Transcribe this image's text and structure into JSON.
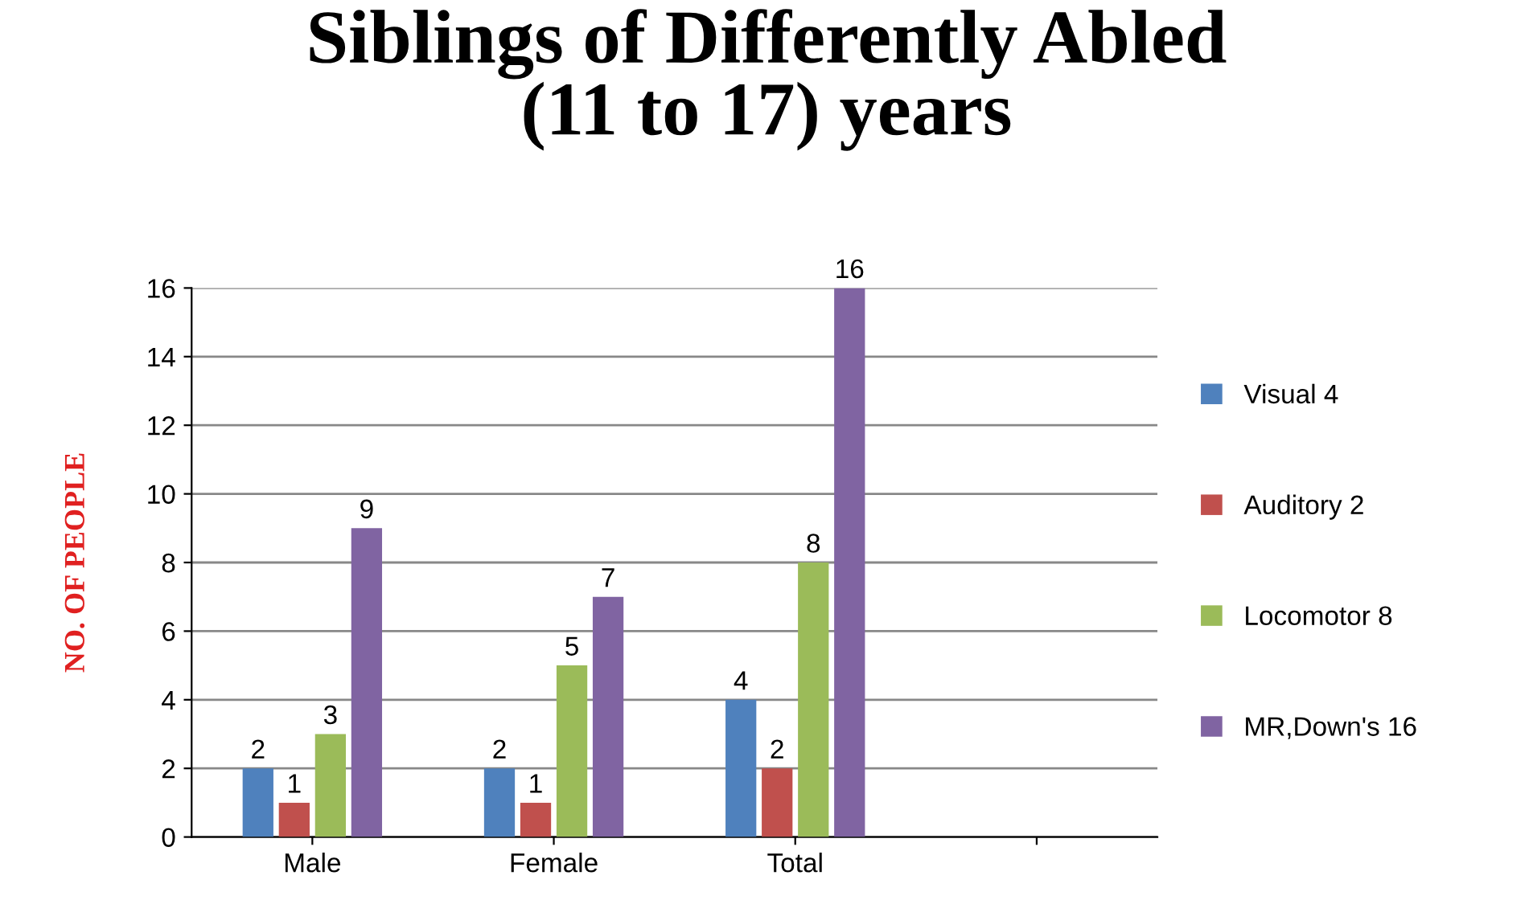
{
  "chart_data": {
    "type": "bar",
    "title": "Siblings of Differently Abled\n(11 to 17) years",
    "ylabel": "NO. OF PEOPLE",
    "categories": [
      "Male",
      "Female",
      "Total",
      null
    ],
    "series": [
      {
        "name": "Visual 4",
        "color": "#4f81bd",
        "values": [
          2,
          2,
          4,
          null
        ]
      },
      {
        "name": "Auditory 2",
        "color": "#c0504d",
        "values": [
          1,
          1,
          2,
          null
        ]
      },
      {
        "name": "Locomotor 8",
        "color": "#9bbb59",
        "values": [
          3,
          5,
          8,
          null
        ]
      },
      {
        "name": "MR,Down's 16",
        "color": "#8064a2",
        "values": [
          9,
          7,
          16,
          null
        ]
      }
    ],
    "ylim": [
      0,
      16
    ],
    "yticks": [
      0,
      2,
      4,
      6,
      8,
      10,
      12,
      14,
      16
    ],
    "grid": "y",
    "legend": "right",
    "data_labels": true
  }
}
